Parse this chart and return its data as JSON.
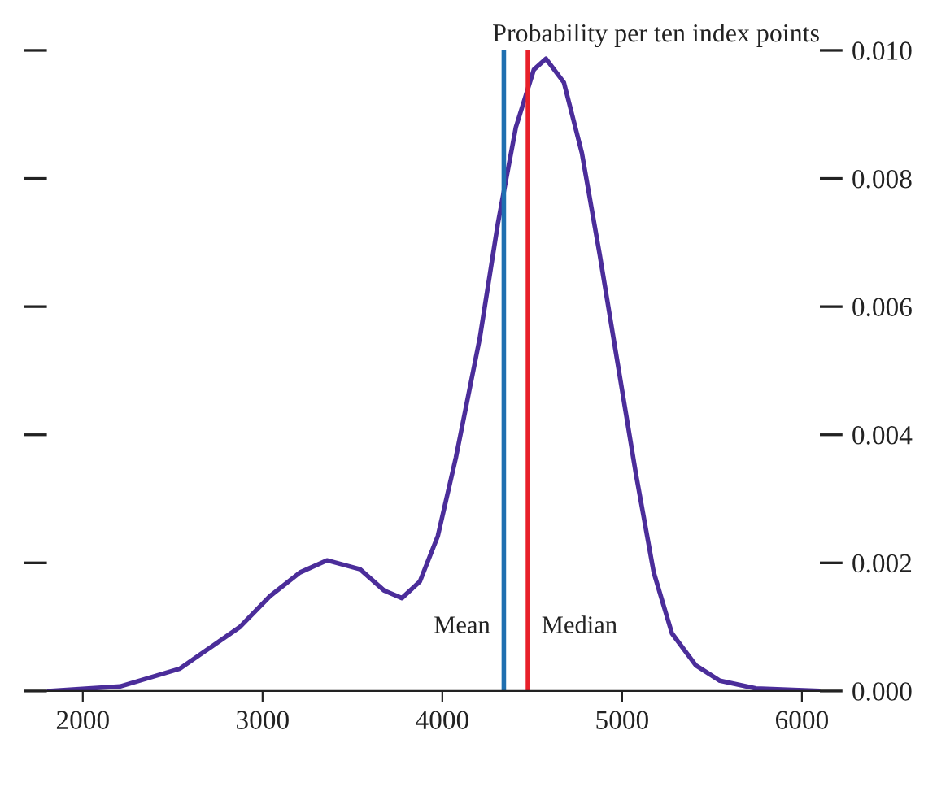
{
  "chart_data": {
    "type": "line",
    "ylabel": "Probability per ten index points",
    "x": [
      1806,
      2207,
      2541,
      2874,
      3041,
      3208,
      3358,
      3542,
      3675,
      3775,
      3875,
      3975,
      4075,
      4209,
      4309,
      4409,
      4509,
      4576,
      4676,
      4776,
      4876,
      4976,
      5076,
      5176,
      5277,
      5410,
      5544,
      5744,
      6100
    ],
    "series": [
      {
        "color": "#4b2d9a",
        "values": [
          0,
          7e-05,
          0.00035,
          0.001,
          0.00148,
          0.00185,
          0.00204,
          0.0019,
          0.00157,
          0.00145,
          0.00171,
          0.00242,
          0.00364,
          0.00552,
          0.0073,
          0.0088,
          0.0097,
          0.00987,
          0.0095,
          0.0084,
          0.0068,
          0.0051,
          0.0034,
          0.00185,
          0.0009,
          0.0004,
          0.00016,
          4e-05,
          0
        ]
      }
    ],
    "xlim": [
      1800,
      6100
    ],
    "ylim": [
      0,
      0.01
    ],
    "xticks": [
      2000,
      3000,
      4000,
      5000,
      6000
    ],
    "yticks": [
      {
        "value": 0,
        "label": "0.000"
      },
      {
        "value": 0.002,
        "label": "0.002"
      },
      {
        "value": 0.004,
        "label": "0.004"
      },
      {
        "value": 0.006,
        "label": "0.006"
      },
      {
        "value": 0.008,
        "label": "0.008"
      },
      {
        "value": 0.01,
        "label": "0.010"
      }
    ],
    "ref_lines": [
      {
        "axis": "x",
        "value": 4342,
        "label": "Mean",
        "color": "#1f6fb0"
      },
      {
        "axis": "x",
        "value": 4476,
        "label": "Median",
        "color": "#e8202a"
      }
    ],
    "grid": false,
    "legend": false,
    "marker": "none",
    "line_style": "solid"
  }
}
